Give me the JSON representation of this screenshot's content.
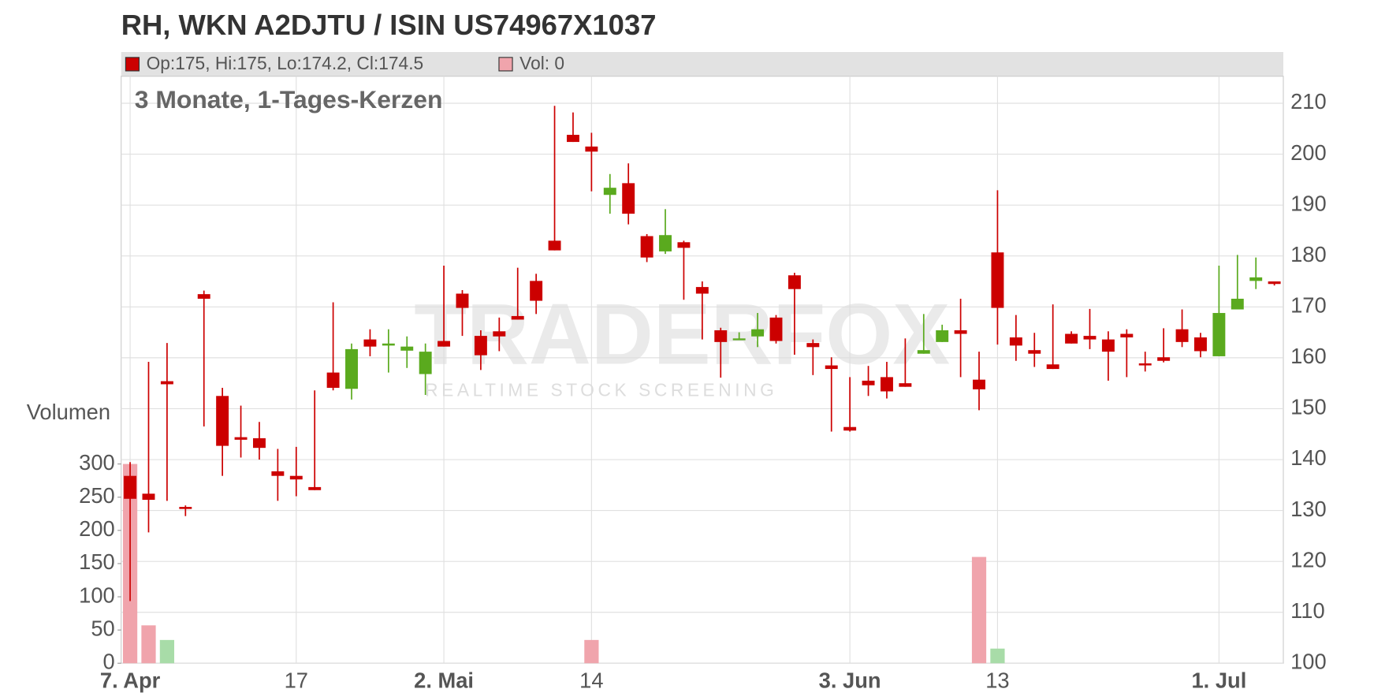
{
  "chart_data": {
    "type": "candlestick",
    "title": "RH, WKN A2DJTU / ISIN US74967X1037",
    "legend_price": "Op:175, Hi:175, Lo:174.2, Cl:174.5",
    "legend_volume": "Vol: 0",
    "subtitle": "3 Monate, 1-Tages-Kerzen",
    "watermark": "TRADERFOX",
    "watermark_sub": "REALTIME STOCK SCREENING",
    "volume_axis_label": "Volumen",
    "categories": [
      "7. Apr",
      null,
      null,
      null,
      null,
      null,
      null,
      null,
      null,
      "17",
      null,
      null,
      null,
      null,
      null,
      null,
      null,
      "2. Mai",
      null,
      null,
      null,
      null,
      null,
      null,
      null,
      "14",
      null,
      null,
      null,
      null,
      null,
      null,
      null,
      null,
      null,
      null,
      null,
      null,
      null,
      "3. Jun",
      null,
      null,
      null,
      null,
      null,
      null,
      null,
      "13",
      null,
      null,
      null,
      null,
      null,
      null,
      null,
      null,
      null,
      null,
      null,
      "1. Jul",
      null,
      null,
      null
    ],
    "open": [
      136.8,
      133.3,
      155.4,
      130.7,
      172.5,
      152.5,
      144.4,
      144.2,
      137.7,
      136.8,
      134.6,
      157.1,
      153.9,
      163.6,
      162.4,
      161.4,
      156.8,
      163.3,
      172.6,
      164.3,
      165.2,
      168.2,
      175.1,
      183.0,
      203.8,
      201.5,
      192.0,
      194.3,
      183.9,
      180.9,
      182.7,
      173.9,
      165.4,
      163.5,
      164.2,
      167.9,
      176.2,
      162.9,
      158.5,
      146.4,
      155.5,
      156.2,
      155.0,
      160.8,
      163.1,
      165.4,
      155.7,
      180.7,
      164.0,
      161.5,
      158.7,
      164.7,
      164.3,
      163.6,
      164.7,
      158.9,
      160.1,
      165.6,
      164.0,
      160.3,
      169.5,
      175.1,
      175
    ],
    "high": [
      139.5,
      159.2,
      162.9,
      131.0,
      173.2,
      154.1,
      150.6,
      147.4,
      142.1,
      142.5,
      153.6,
      170.9,
      162.8,
      165.6,
      165.6,
      164.2,
      162.8,
      178.1,
      173.3,
      165.4,
      167.9,
      177.7,
      176.5,
      209.5,
      208.2,
      204.2,
      196.1,
      198.2,
      184.3,
      189.2,
      183.0,
      175.0,
      165.9,
      165.0,
      168.8,
      168.4,
      176.7,
      163.6,
      160.1,
      156.2,
      158.4,
      159.2,
      163.8,
      168.6,
      166.5,
      171.6,
      161.2,
      192.9,
      168.4,
      164.9,
      170.5,
      165.2,
      169.6,
      165.2,
      165.6,
      161.2,
      165.8,
      169.5,
      164.9,
      178.1,
      180.2,
      179.7,
      175
    ],
    "low": [
      112.2,
      125.7,
      131.9,
      128.9,
      146.5,
      136.8,
      140.4,
      140.0,
      131.9,
      132.8,
      134.0,
      153.6,
      151.8,
      160.3,
      157.1,
      158.0,
      152.7,
      162.2,
      164.3,
      157.6,
      161.3,
      167.5,
      168.6,
      181.1,
      202.4,
      192.7,
      188.3,
      186.2,
      178.8,
      180.4,
      171.4,
      163.6,
      156.1,
      163.5,
      162.1,
      162.8,
      160.6,
      156.6,
      145.5,
      145.5,
      152.5,
      152.0,
      154.3,
      160.8,
      163.1,
      156.2,
      149.7,
      162.6,
      159.4,
      158.2,
      157.8,
      162.8,
      161.7,
      155.5,
      156.2,
      157.3,
      159.1,
      162.1,
      160.1,
      160.3,
      169.5,
      173.5,
      174.2
    ],
    "close": [
      132.3,
      132.1,
      154.8,
      130.3,
      171.6,
      142.7,
      143.9,
      142.3,
      136.8,
      136.1,
      134.0,
      154.1,
      161.7,
      162.2,
      162.8,
      162.2,
      161.2,
      162.2,
      169.8,
      160.5,
      164.2,
      167.5,
      171.2,
      181.1,
      202.4,
      200.5,
      193.4,
      188.3,
      179.7,
      184.1,
      181.6,
      172.6,
      163.1,
      163.8,
      165.6,
      163.3,
      173.5,
      162.1,
      157.8,
      145.7,
      154.6,
      153.4,
      154.3,
      161.5,
      165.4,
      164.7,
      153.8,
      169.8,
      162.4,
      160.8,
      157.8,
      162.8,
      163.6,
      161.2,
      164.0,
      158.5,
      159.4,
      163.1,
      161.3,
      168.8,
      171.6,
      175.8,
      174.5
    ],
    "volume": [
      300,
      57,
      35,
      0,
      0,
      0,
      0,
      0,
      0,
      0,
      0,
      0,
      0,
      0,
      0,
      0,
      0,
      0,
      0,
      0,
      0,
      0,
      0,
      0,
      0,
      35,
      0,
      0,
      0,
      0,
      0,
      0,
      0,
      0,
      0,
      0,
      0,
      0,
      0,
      0,
      0,
      0,
      0,
      0,
      0,
      0,
      160,
      22,
      0,
      0,
      0,
      0,
      0,
      0,
      0,
      0,
      0,
      0,
      0,
      0,
      0,
      0,
      0
    ],
    "volume_direction": [
      "down",
      "down",
      "up",
      "down",
      "down",
      "down",
      "down",
      "down",
      "down",
      "down",
      "down",
      "down",
      "down",
      "down",
      "down",
      "down",
      "down",
      "down",
      "down",
      "down",
      "down",
      "down",
      "down",
      "down",
      "down",
      "down",
      "down",
      "down",
      "down",
      "down",
      "down",
      "down",
      "down",
      "down",
      "down",
      "down",
      "down",
      "down",
      "down",
      "down",
      "down",
      "down",
      "down",
      "down",
      "down",
      "down",
      "down",
      "up",
      "down",
      "down",
      "down",
      "down",
      "down",
      "down",
      "down",
      "down",
      "down",
      "down",
      "down",
      "down",
      "down",
      "down",
      "down"
    ],
    "up_color": "#5aaa1e",
    "down_color": "#cc0000",
    "volume_up_color": "#a8dca8",
    "volume_down_color": "#f0a4ac",
    "ylim": [
      100,
      215.3
    ],
    "yticks": [
      100,
      110,
      120,
      130,
      140,
      150,
      160,
      170,
      180,
      190,
      200,
      210
    ],
    "volume_ylim": [
      0,
      300
    ],
    "volume_yticks": [
      0,
      50,
      100,
      150,
      200,
      250,
      300
    ],
    "grid": true
  }
}
